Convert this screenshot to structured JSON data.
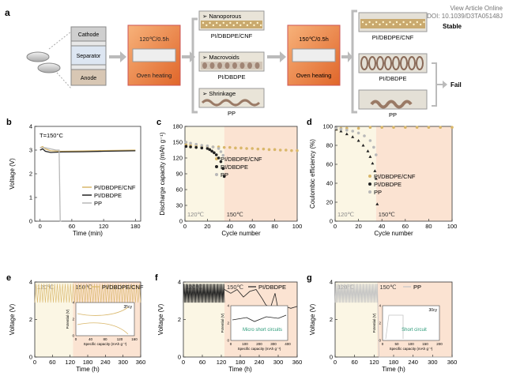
{
  "header": {
    "line1": "View Article Online",
    "line2": "DOI: 10.1039/D3TA05148J"
  },
  "panel_a": {
    "label": "a",
    "cell_layers": [
      "Cathode",
      "Separator",
      "Anode"
    ],
    "oven1": {
      "temp": "120℃/0.5h",
      "caption": "Oven heating"
    },
    "oven2": {
      "temp": "150℃/0.5h",
      "caption": "Oven heating"
    },
    "mid_states": [
      {
        "tag": "Nanoporous",
        "name": "PI/DBDPE/CNF"
      },
      {
        "tag": "Macrovoids",
        "name": "PI/DBDPE"
      },
      {
        "tag": "Shrinkage",
        "name": "PP"
      }
    ],
    "final_states": [
      {
        "name": "PI/DBDPE/CNF"
      },
      {
        "name": "PI/DBDPE"
      },
      {
        "name": "PP"
      }
    ],
    "stable": "Stable",
    "fail": "Fail",
    "colors": {
      "oven": "#f08a3c",
      "sheet": "#d8d2c4",
      "dots": "#f6e6b0"
    }
  },
  "chart_data": [
    {
      "id": "b",
      "type": "line",
      "annotation": "T=150°C",
      "xlabel": "Time (min)",
      "ylabel": "Voltage (V)",
      "xlim": [
        -10,
        190
      ],
      "ylim": [
        0,
        4
      ],
      "xticks": [
        0,
        60,
        120,
        180
      ],
      "yticks": [
        0,
        1,
        2,
        3,
        4
      ],
      "series": [
        {
          "name": "PI/DBDPE/CNF",
          "color": "#d9b76a",
          "x": [
            0,
            5,
            10,
            20,
            40,
            80,
            120,
            180
          ],
          "y": [
            3.1,
            3.15,
            3.05,
            2.97,
            2.95,
            2.96,
            2.98,
            3.0
          ]
        },
        {
          "name": "PI/DBDPE",
          "color": "#222222",
          "x": [
            0,
            5,
            10,
            20,
            40,
            80,
            120,
            180
          ],
          "y": [
            3.0,
            3.05,
            2.95,
            2.9,
            2.92,
            2.93,
            2.95,
            2.97
          ]
        },
        {
          "name": "PP",
          "color": "#b8b8b8",
          "x": [
            0,
            10,
            20,
            30,
            36,
            38,
            40
          ],
          "y": [
            3.1,
            3.1,
            3.05,
            3.0,
            3.0,
            0.0,
            0.0
          ]
        }
      ]
    },
    {
      "id": "c",
      "type": "scatter",
      "xlabel": "Cycle number",
      "ylabel": "Discharge capacity (mAh g⁻¹)",
      "xlim": [
        0,
        100
      ],
      "ylim": [
        0,
        180
      ],
      "xticks": [
        0,
        20,
        40,
        60,
        80,
        100
      ],
      "yticks": [
        0,
        30,
        60,
        90,
        120,
        150,
        180
      ],
      "zone1": "120℃",
      "zone2": "150℃",
      "switch_x": 35,
      "series": [
        {
          "name": "PI/DBDPE/CNF",
          "color": "#d9b76a",
          "x": [
            1,
            5,
            10,
            15,
            20,
            25,
            30,
            35,
            40,
            45,
            50,
            55,
            60,
            65,
            70,
            75,
            80,
            85,
            90,
            95,
            100
          ],
          "y": [
            145,
            144,
            143,
            142,
            142,
            141,
            141,
            140,
            140,
            139,
            139,
            138,
            138,
            137,
            137,
            136,
            136,
            135,
            135,
            134,
            134
          ]
        },
        {
          "name": "PI/DBDPE",
          "color": "#222222",
          "x": [
            1,
            5,
            10,
            15,
            20,
            22,
            24,
            26,
            28,
            30,
            32,
            34,
            35
          ],
          "y": [
            142,
            141,
            140,
            139,
            138,
            136,
            133,
            130,
            126,
            120,
            113,
            100,
            85
          ]
        },
        {
          "name": "PP",
          "color": "#b8b8b8",
          "x": [
            1,
            5,
            10,
            15,
            20,
            25,
            30,
            32,
            34
          ],
          "y": [
            150,
            148,
            146,
            144,
            143,
            141,
            138,
            132,
            125
          ]
        }
      ]
    },
    {
      "id": "d",
      "type": "scatter",
      "xlabel": "Cycle number",
      "ylabel": "Coulombic efficiency (%)",
      "xlim": [
        0,
        100
      ],
      "ylim": [
        0,
        100
      ],
      "xticks": [
        0,
        20,
        40,
        60,
        80,
        100
      ],
      "yticks": [
        0,
        20,
        40,
        60,
        80,
        100
      ],
      "zone1": "120℃",
      "zone2": "150℃",
      "switch_x": 35,
      "series": [
        {
          "name": "PI/DBDPE/CNF",
          "color": "#d9b76a",
          "x": [
            1,
            5,
            10,
            20,
            30,
            40,
            50,
            60,
            70,
            80,
            90,
            100
          ],
          "y": [
            97,
            98,
            98,
            98,
            99,
            99,
            99,
            99,
            99,
            99,
            99,
            99
          ]
        },
        {
          "name": "PI/DBDPE",
          "color": "#222222",
          "x": [
            1,
            5,
            10,
            15,
            20,
            24,
            28,
            30,
            32,
            34,
            35,
            36
          ],
          "y": [
            97,
            95,
            92,
            89,
            85,
            80,
            74,
            68,
            61,
            53,
            45,
            18
          ]
        },
        {
          "name": "PP",
          "color": "#b8b8b8",
          "x": [
            1,
            5,
            10,
            15,
            20,
            25,
            30,
            33,
            35
          ],
          "y": [
            98,
            97,
            96,
            95,
            93,
            90,
            85,
            78,
            70
          ]
        }
      ]
    },
    {
      "id": "e",
      "type": "line",
      "legend": "PI/DBDPE/CNF",
      "zone1": "120℃",
      "zone2": "150℃",
      "xlabel": "Time (h)",
      "ylabel": "Voltage (V)",
      "xlim": [
        0,
        360
      ],
      "ylim": [
        0,
        4
      ],
      "switch_x": 130,
      "xticks": [
        0,
        60,
        120,
        180,
        240,
        300,
        360
      ],
      "yticks": [
        0,
        2,
        4
      ],
      "series": [
        {
          "name": "PI/DBDPE/CNF",
          "color": "#d9b76a",
          "v_low": 2.9,
          "v_high": 3.9,
          "cycles": 40
        }
      ],
      "inset": {
        "title": "35cy",
        "xlabel": "Specific capacity (mAh g⁻¹)",
        "ylabel": "Potential (V)",
        "xticks": [
          0,
          40,
          80,
          120,
          160
        ],
        "yticks": [
          0,
          2,
          4
        ]
      }
    },
    {
      "id": "f",
      "type": "line",
      "legend": "PI/DBDPE",
      "zone1": "120℃",
      "zone2": "150℃",
      "xlabel": "Time (h)",
      "ylabel": "Voltage (V)",
      "xlim": [
        0,
        360
      ],
      "ylim": [
        0,
        4
      ],
      "switch_x": 130,
      "xticks": [
        0,
        60,
        120,
        180,
        240,
        300,
        360
      ],
      "yticks": [
        0,
        2,
        4
      ],
      "series": [
        {
          "name": "PI/DBDPE",
          "color": "#222222",
          "v_low": 2.9,
          "v_high": 3.9,
          "cycles": 40
        }
      ],
      "inset": {
        "xlabel": "Specific capacity (mAh g⁻¹)",
        "ylabel": "Potential (V)",
        "xticks": [
          0,
          100,
          200,
          300,
          400
        ],
        "yticks": [
          0,
          2,
          4
        ]
      },
      "note": "Micro short circuits"
    },
    {
      "id": "g",
      "type": "line",
      "legend": "PP",
      "zone1": "120℃",
      "zone2": "150℃",
      "xlabel": "Time (h)",
      "ylabel": "Voltage (V)",
      "xlim": [
        0,
        360
      ],
      "ylim": [
        0,
        4
      ],
      "switch_x": 130,
      "xticks": [
        0,
        60,
        120,
        180,
        240,
        300,
        360
      ],
      "yticks": [
        0,
        2,
        4
      ],
      "series": [
        {
          "name": "PP",
          "color": "#c4c4c4",
          "v_low": 2.9,
          "v_high": 3.9,
          "cycles": 40
        }
      ],
      "inset": {
        "title": "30cy",
        "xlabel": "Specific capacity (mAh g⁻¹)",
        "ylabel": "Potential (V)",
        "xticks": [
          0,
          50,
          100,
          150,
          200
        ],
        "yticks": [
          0,
          2,
          4
        ]
      },
      "note": "Short circuit"
    }
  ]
}
